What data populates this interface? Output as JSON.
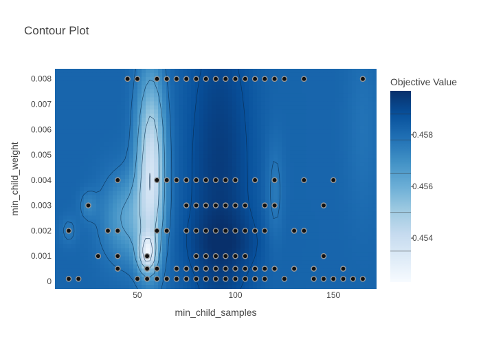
{
  "chart_data": {
    "type": "contour",
    "title": "Contour Plot",
    "xlabel": "min_child_samples",
    "ylabel": "min_child_weight",
    "xlim": [
      8,
      172
    ],
    "ylim": [
      -0.0003,
      0.0084
    ],
    "x_ticks": [
      50,
      100,
      150
    ],
    "y_ticks": [
      0,
      0.001,
      0.002,
      0.003,
      0.004,
      0.005,
      0.006,
      0.007,
      0.008
    ],
    "x_tick_labels": [
      "50",
      "100",
      "150"
    ],
    "y_tick_labels": [
      "0",
      "0.001",
      "0.002",
      "0.003",
      "0.004",
      "0.005",
      "0.006",
      "0.007",
      "0.008"
    ],
    "colorbar": {
      "title": "Objective Value",
      "range": [
        0.4523,
        0.4597
      ],
      "ticks": [
        0.454,
        0.456,
        0.458
      ],
      "tick_labels": [
        "0.454",
        "0.456",
        "0.458"
      ],
      "colors": [
        "#f7fbff",
        "#deebf7",
        "#c6dbef",
        "#9ecae1",
        "#6baed6",
        "#4292c6",
        "#2171b5",
        "#08519c",
        "#08306b"
      ]
    },
    "points": [
      [
        45,
        0.008
      ],
      [
        50,
        0.008
      ],
      [
        60,
        0.008
      ],
      [
        65,
        0.008
      ],
      [
        70,
        0.008
      ],
      [
        75,
        0.008
      ],
      [
        80,
        0.008
      ],
      [
        85,
        0.008
      ],
      [
        90,
        0.008
      ],
      [
        95,
        0.008
      ],
      [
        100,
        0.008
      ],
      [
        105,
        0.008
      ],
      [
        110,
        0.008
      ],
      [
        115,
        0.008
      ],
      [
        120,
        0.008
      ],
      [
        125,
        0.008
      ],
      [
        135,
        0.008
      ],
      [
        165,
        0.008
      ],
      [
        40,
        0.004
      ],
      [
        60,
        0.004
      ],
      [
        65,
        0.004
      ],
      [
        70,
        0.004
      ],
      [
        75,
        0.004
      ],
      [
        80,
        0.004
      ],
      [
        85,
        0.004
      ],
      [
        90,
        0.004
      ],
      [
        95,
        0.004
      ],
      [
        100,
        0.004
      ],
      [
        110,
        0.004
      ],
      [
        120,
        0.004
      ],
      [
        135,
        0.004
      ],
      [
        150,
        0.004
      ],
      [
        25,
        0.003
      ],
      [
        75,
        0.003
      ],
      [
        80,
        0.003
      ],
      [
        85,
        0.003
      ],
      [
        90,
        0.003
      ],
      [
        95,
        0.003
      ],
      [
        100,
        0.003
      ],
      [
        105,
        0.003
      ],
      [
        115,
        0.003
      ],
      [
        120,
        0.003
      ],
      [
        145,
        0.003
      ],
      [
        15,
        0.002
      ],
      [
        35,
        0.002
      ],
      [
        40,
        0.002
      ],
      [
        60,
        0.002
      ],
      [
        65,
        0.002
      ],
      [
        75,
        0.002
      ],
      [
        80,
        0.002
      ],
      [
        85,
        0.002
      ],
      [
        90,
        0.002
      ],
      [
        95,
        0.002
      ],
      [
        100,
        0.002
      ],
      [
        105,
        0.002
      ],
      [
        110,
        0.002
      ],
      [
        115,
        0.002
      ],
      [
        130,
        0.002
      ],
      [
        135,
        0.002
      ],
      [
        30,
        0.001
      ],
      [
        40,
        0.001
      ],
      [
        55,
        0.001
      ],
      [
        80,
        0.001
      ],
      [
        85,
        0.001
      ],
      [
        90,
        0.001
      ],
      [
        95,
        0.001
      ],
      [
        100,
        0.001
      ],
      [
        105,
        0.001
      ],
      [
        145,
        0.001
      ],
      [
        40,
        0.0005
      ],
      [
        55,
        0.0005
      ],
      [
        60,
        0.0005
      ],
      [
        70,
        0.0005
      ],
      [
        75,
        0.0005
      ],
      [
        80,
        0.0005
      ],
      [
        85,
        0.0005
      ],
      [
        90,
        0.0005
      ],
      [
        95,
        0.0005
      ],
      [
        100,
        0.0005
      ],
      [
        105,
        0.0005
      ],
      [
        110,
        0.0005
      ],
      [
        115,
        0.0005
      ],
      [
        120,
        0.0005
      ],
      [
        130,
        0.0005
      ],
      [
        140,
        0.0005
      ],
      [
        155,
        0.0005
      ],
      [
        15,
        0.0001
      ],
      [
        20,
        0.0001
      ],
      [
        50,
        0.0001
      ],
      [
        55,
        0.0001
      ],
      [
        60,
        0.0001
      ],
      [
        65,
        0.0001
      ],
      [
        70,
        0.0001
      ],
      [
        75,
        0.0001
      ],
      [
        80,
        0.0001
      ],
      [
        85,
        0.0001
      ],
      [
        90,
        0.0001
      ],
      [
        95,
        0.0001
      ],
      [
        100,
        0.0001
      ],
      [
        105,
        0.0001
      ],
      [
        110,
        0.0001
      ],
      [
        115,
        0.0001
      ],
      [
        125,
        0.0001
      ],
      [
        140,
        0.0001
      ],
      [
        145,
        0.0001
      ],
      [
        150,
        0.0001
      ],
      [
        155,
        0.0001
      ],
      [
        160,
        0.0001
      ],
      [
        165,
        0.0001
      ]
    ],
    "series": [
      {
        "x": 57,
        "y": 0.0045,
        "sx": 5,
        "sy": 0.0025,
        "amp": -0.0045
      },
      {
        "x": 55,
        "y": 0.0011,
        "sx": 3,
        "sy": 0.0005,
        "amp": -0.0038
      },
      {
        "x": 45,
        "y": 0.0025,
        "sx": 9,
        "sy": 0.0012,
        "amp": -0.0018
      },
      {
        "x": 25,
        "y": 0.003,
        "sx": 3,
        "sy": 0.0004,
        "amp": -0.0008
      },
      {
        "x": 15,
        "y": 0.002,
        "sx": 3,
        "sy": 0.0004,
        "amp": -0.0006
      },
      {
        "x": 120,
        "y": 0.0035,
        "sx": 3,
        "sy": 0.0015,
        "amp": -0.0007
      },
      {
        "x": 92,
        "y": 0.004,
        "sx": 12,
        "sy": 0.005,
        "amp": 0.0012
      },
      {
        "x": 95,
        "y": 0.0015,
        "sx": 14,
        "sy": 0.0008,
        "amp": 0.0006
      },
      {
        "x": 165,
        "y": 0.006,
        "sx": 6,
        "sy": 0.0025,
        "amp": -0.0004
      }
    ],
    "base_value": 0.4582,
    "legend": "colorbar-right",
    "grid": false
  }
}
